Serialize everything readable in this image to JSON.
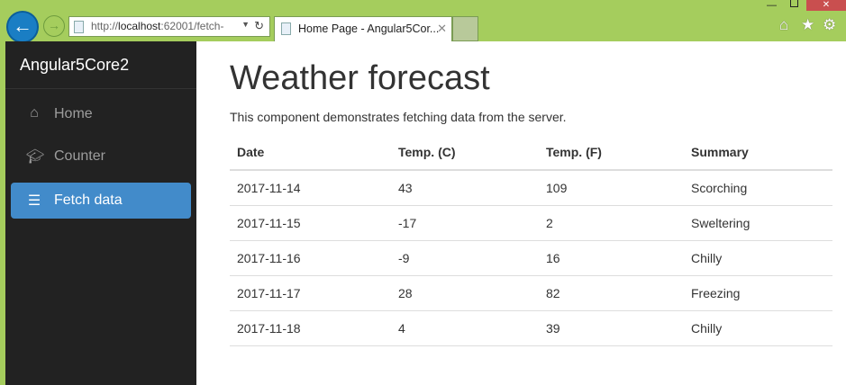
{
  "browser": {
    "url_prefix": "http://",
    "url_host": "localhost",
    "url_rest": ":62001/fetch-",
    "tab_title": "Home Page - Angular5Cor...",
    "colors": {
      "frame": "#a5cd5d",
      "close": "#c94f4f"
    }
  },
  "sidebar": {
    "brand": "Angular5Core2",
    "items": [
      {
        "label": "Home",
        "icon": "home-icon"
      },
      {
        "label": "Counter",
        "icon": "graduation-cap-icon"
      },
      {
        "label": "Fetch data",
        "icon": "list-icon",
        "active": true
      }
    ],
    "active_color": "#428bca"
  },
  "main": {
    "title": "Weather forecast",
    "description": "This component demonstrates fetching data from the server.",
    "table": {
      "headers": [
        "Date",
        "Temp. (C)",
        "Temp. (F)",
        "Summary"
      ],
      "rows": [
        [
          "2017-11-14",
          "43",
          "109",
          "Scorching"
        ],
        [
          "2017-11-15",
          "-17",
          "2",
          "Sweltering"
        ],
        [
          "2017-11-16",
          "-9",
          "16",
          "Chilly"
        ],
        [
          "2017-11-17",
          "28",
          "82",
          "Freezing"
        ],
        [
          "2017-11-18",
          "4",
          "39",
          "Chilly"
        ]
      ]
    }
  }
}
